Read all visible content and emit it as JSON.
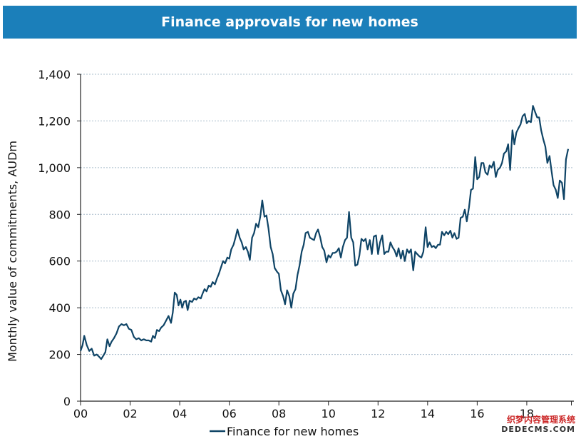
{
  "title": "Finance approvals for new homes",
  "watermark": {
    "line1": "织梦内容管理系统",
    "line2": "DEDECMS.COM"
  },
  "colors": {
    "title_bg": "#1b7fba",
    "series": "#0f4466",
    "grid": "#a9bccb",
    "axis": "#222222"
  },
  "chart_data": {
    "type": "line",
    "title": "Finance approvals for new homes",
    "xlabel": "",
    "ylabel": "Monthly value of commitments, AUDm",
    "xlim": [
      2000,
      2019.9
    ],
    "ylim": [
      0,
      1400
    ],
    "yticks": [
      0,
      200,
      400,
      600,
      800,
      1000,
      1200,
      1400
    ],
    "ytick_labels": [
      "0",
      "200",
      "400",
      "600",
      "800",
      "1,000",
      "1,200",
      "1,400"
    ],
    "xticks": [
      2000,
      2002,
      2004,
      2006,
      2008,
      2010,
      2012,
      2014,
      2016,
      2018
    ],
    "xtick_labels": [
      "00",
      "02",
      "04",
      "06",
      "08",
      "10",
      "12",
      "14",
      "16",
      "18"
    ],
    "grid": "horizontal dotted",
    "legend": "bottom-center",
    "series": [
      {
        "name": "Finance for new homes",
        "points": [
          [
            2000.0,
            215
          ],
          [
            2000.08,
            240
          ],
          [
            2000.15,
            280
          ],
          [
            2000.25,
            240
          ],
          [
            2000.35,
            215
          ],
          [
            2000.45,
            225
          ],
          [
            2000.55,
            195
          ],
          [
            2000.65,
            200
          ],
          [
            2000.75,
            190
          ],
          [
            2000.83,
            180
          ],
          [
            2000.92,
            195
          ],
          [
            2001.0,
            210
          ],
          [
            2001.08,
            265
          ],
          [
            2001.17,
            235
          ],
          [
            2001.25,
            255
          ],
          [
            2001.35,
            270
          ],
          [
            2001.45,
            290
          ],
          [
            2001.55,
            320
          ],
          [
            2001.65,
            330
          ],
          [
            2001.75,
            325
          ],
          [
            2001.85,
            330
          ],
          [
            2001.95,
            310
          ],
          [
            2002.05,
            305
          ],
          [
            2002.15,
            275
          ],
          [
            2002.25,
            265
          ],
          [
            2002.35,
            270
          ],
          [
            2002.45,
            260
          ],
          [
            2002.55,
            265
          ],
          [
            2002.65,
            260
          ],
          [
            2002.75,
            260
          ],
          [
            2002.85,
            255
          ],
          [
            2002.92,
            280
          ],
          [
            2003.0,
            270
          ],
          [
            2003.08,
            305
          ],
          [
            2003.17,
            300
          ],
          [
            2003.25,
            315
          ],
          [
            2003.35,
            325
          ],
          [
            2003.45,
            345
          ],
          [
            2003.55,
            365
          ],
          [
            2003.65,
            335
          ],
          [
            2003.72,
            380
          ],
          [
            2003.8,
            465
          ],
          [
            2003.88,
            455
          ],
          [
            2003.95,
            410
          ],
          [
            2004.03,
            435
          ],
          [
            2004.1,
            400
          ],
          [
            2004.17,
            425
          ],
          [
            2004.25,
            430
          ],
          [
            2004.32,
            390
          ],
          [
            2004.4,
            430
          ],
          [
            2004.5,
            425
          ],
          [
            2004.58,
            440
          ],
          [
            2004.67,
            435
          ],
          [
            2004.75,
            445
          ],
          [
            2004.85,
            440
          ],
          [
            2004.92,
            460
          ],
          [
            2005.0,
            480
          ],
          [
            2005.08,
            470
          ],
          [
            2005.17,
            495
          ],
          [
            2005.25,
            490
          ],
          [
            2005.33,
            510
          ],
          [
            2005.42,
            500
          ],
          [
            2005.5,
            525
          ],
          [
            2005.58,
            545
          ],
          [
            2005.67,
            575
          ],
          [
            2005.75,
            600
          ],
          [
            2005.83,
            590
          ],
          [
            2005.92,
            615
          ],
          [
            2006.0,
            610
          ],
          [
            2006.08,
            650
          ],
          [
            2006.17,
            670
          ],
          [
            2006.25,
            700
          ],
          [
            2006.33,
            735
          ],
          [
            2006.42,
            700
          ],
          [
            2006.5,
            680
          ],
          [
            2006.58,
            650
          ],
          [
            2006.67,
            660
          ],
          [
            2006.75,
            640
          ],
          [
            2006.83,
            605
          ],
          [
            2006.92,
            700
          ],
          [
            2007.0,
            720
          ],
          [
            2007.08,
            760
          ],
          [
            2007.17,
            745
          ],
          [
            2007.25,
            790
          ],
          [
            2007.33,
            860
          ],
          [
            2007.42,
            790
          ],
          [
            2007.5,
            795
          ],
          [
            2007.58,
            740
          ],
          [
            2007.67,
            660
          ],
          [
            2007.75,
            630
          ],
          [
            2007.83,
            570
          ],
          [
            2007.92,
            555
          ],
          [
            2008.0,
            545
          ],
          [
            2008.08,
            475
          ],
          [
            2008.17,
            450
          ],
          [
            2008.25,
            415
          ],
          [
            2008.33,
            475
          ],
          [
            2008.42,
            450
          ],
          [
            2008.5,
            400
          ],
          [
            2008.58,
            460
          ],
          [
            2008.67,
            480
          ],
          [
            2008.75,
            540
          ],
          [
            2008.83,
            580
          ],
          [
            2008.92,
            640
          ],
          [
            2009.0,
            670
          ],
          [
            2009.08,
            720
          ],
          [
            2009.17,
            725
          ],
          [
            2009.25,
            700
          ],
          [
            2009.33,
            695
          ],
          [
            2009.42,
            690
          ],
          [
            2009.5,
            720
          ],
          [
            2009.58,
            735
          ],
          [
            2009.67,
            700
          ],
          [
            2009.75,
            660
          ],
          [
            2009.83,
            645
          ],
          [
            2009.92,
            595
          ],
          [
            2010.0,
            625
          ],
          [
            2010.08,
            615
          ],
          [
            2010.17,
            635
          ],
          [
            2010.25,
            635
          ],
          [
            2010.33,
            640
          ],
          [
            2010.42,
            655
          ],
          [
            2010.5,
            615
          ],
          [
            2010.58,
            660
          ],
          [
            2010.67,
            690
          ],
          [
            2010.75,
            700
          ],
          [
            2010.83,
            810
          ],
          [
            2010.92,
            700
          ],
          [
            2011.0,
            680
          ],
          [
            2011.08,
            580
          ],
          [
            2011.17,
            585
          ],
          [
            2011.25,
            625
          ],
          [
            2011.33,
            695
          ],
          [
            2011.42,
            685
          ],
          [
            2011.5,
            695
          ],
          [
            2011.58,
            650
          ],
          [
            2011.67,
            690
          ],
          [
            2011.75,
            630
          ],
          [
            2011.83,
            705
          ],
          [
            2011.92,
            710
          ],
          [
            2012.0,
            630
          ],
          [
            2012.08,
            680
          ],
          [
            2012.17,
            710
          ],
          [
            2012.25,
            630
          ],
          [
            2012.33,
            640
          ],
          [
            2012.42,
            640
          ],
          [
            2012.5,
            680
          ],
          [
            2012.58,
            660
          ],
          [
            2012.67,
            645
          ],
          [
            2012.75,
            620
          ],
          [
            2012.83,
            655
          ],
          [
            2012.92,
            610
          ],
          [
            2013.0,
            645
          ],
          [
            2013.08,
            600
          ],
          [
            2013.17,
            650
          ],
          [
            2013.25,
            635
          ],
          [
            2013.33,
            650
          ],
          [
            2013.42,
            560
          ],
          [
            2013.5,
            640
          ],
          [
            2013.58,
            630
          ],
          [
            2013.67,
            620
          ],
          [
            2013.75,
            615
          ],
          [
            2013.83,
            640
          ],
          [
            2013.92,
            745
          ],
          [
            2014.0,
            660
          ],
          [
            2014.08,
            680
          ],
          [
            2014.17,
            660
          ],
          [
            2014.25,
            665
          ],
          [
            2014.33,
            655
          ],
          [
            2014.42,
            670
          ],
          [
            2014.5,
            670
          ],
          [
            2014.58,
            725
          ],
          [
            2014.67,
            710
          ],
          [
            2014.75,
            725
          ],
          [
            2014.83,
            715
          ],
          [
            2014.92,
            730
          ],
          [
            2015.0,
            700
          ],
          [
            2015.08,
            720
          ],
          [
            2015.17,
            695
          ],
          [
            2015.25,
            700
          ],
          [
            2015.33,
            785
          ],
          [
            2015.42,
            790
          ],
          [
            2015.5,
            820
          ],
          [
            2015.58,
            770
          ],
          [
            2015.67,
            830
          ],
          [
            2015.75,
            905
          ],
          [
            2015.83,
            910
          ],
          [
            2015.92,
            1045
          ],
          [
            2016.0,
            950
          ],
          [
            2016.08,
            960
          ],
          [
            2016.17,
            1020
          ],
          [
            2016.25,
            1020
          ],
          [
            2016.33,
            980
          ],
          [
            2016.42,
            970
          ],
          [
            2016.5,
            1010
          ],
          [
            2016.58,
            1000
          ],
          [
            2016.67,
            1025
          ],
          [
            2016.75,
            960
          ],
          [
            2016.83,
            990
          ],
          [
            2016.92,
            1000
          ],
          [
            2017.0,
            1020
          ],
          [
            2017.08,
            1060
          ],
          [
            2017.17,
            1070
          ],
          [
            2017.25,
            1100
          ],
          [
            2017.33,
            990
          ],
          [
            2017.42,
            1160
          ],
          [
            2017.5,
            1100
          ],
          [
            2017.58,
            1150
          ],
          [
            2017.67,
            1170
          ],
          [
            2017.75,
            1185
          ],
          [
            2017.83,
            1220
          ],
          [
            2017.92,
            1230
          ],
          [
            2018.0,
            1190
          ],
          [
            2018.08,
            1200
          ],
          [
            2018.17,
            1195
          ],
          [
            2018.25,
            1265
          ],
          [
            2018.33,
            1240
          ],
          [
            2018.42,
            1215
          ],
          [
            2018.5,
            1215
          ],
          [
            2018.58,
            1160
          ],
          [
            2018.67,
            1120
          ],
          [
            2018.75,
            1090
          ],
          [
            2018.83,
            1020
          ],
          [
            2018.92,
            1050
          ],
          [
            2019.0,
            985
          ],
          [
            2019.08,
            925
          ],
          [
            2019.17,
            905
          ],
          [
            2019.25,
            870
          ],
          [
            2019.33,
            945
          ],
          [
            2019.42,
            935
          ],
          [
            2019.5,
            865
          ],
          [
            2019.58,
            1035
          ],
          [
            2019.67,
            1080
          ]
        ]
      }
    ]
  }
}
